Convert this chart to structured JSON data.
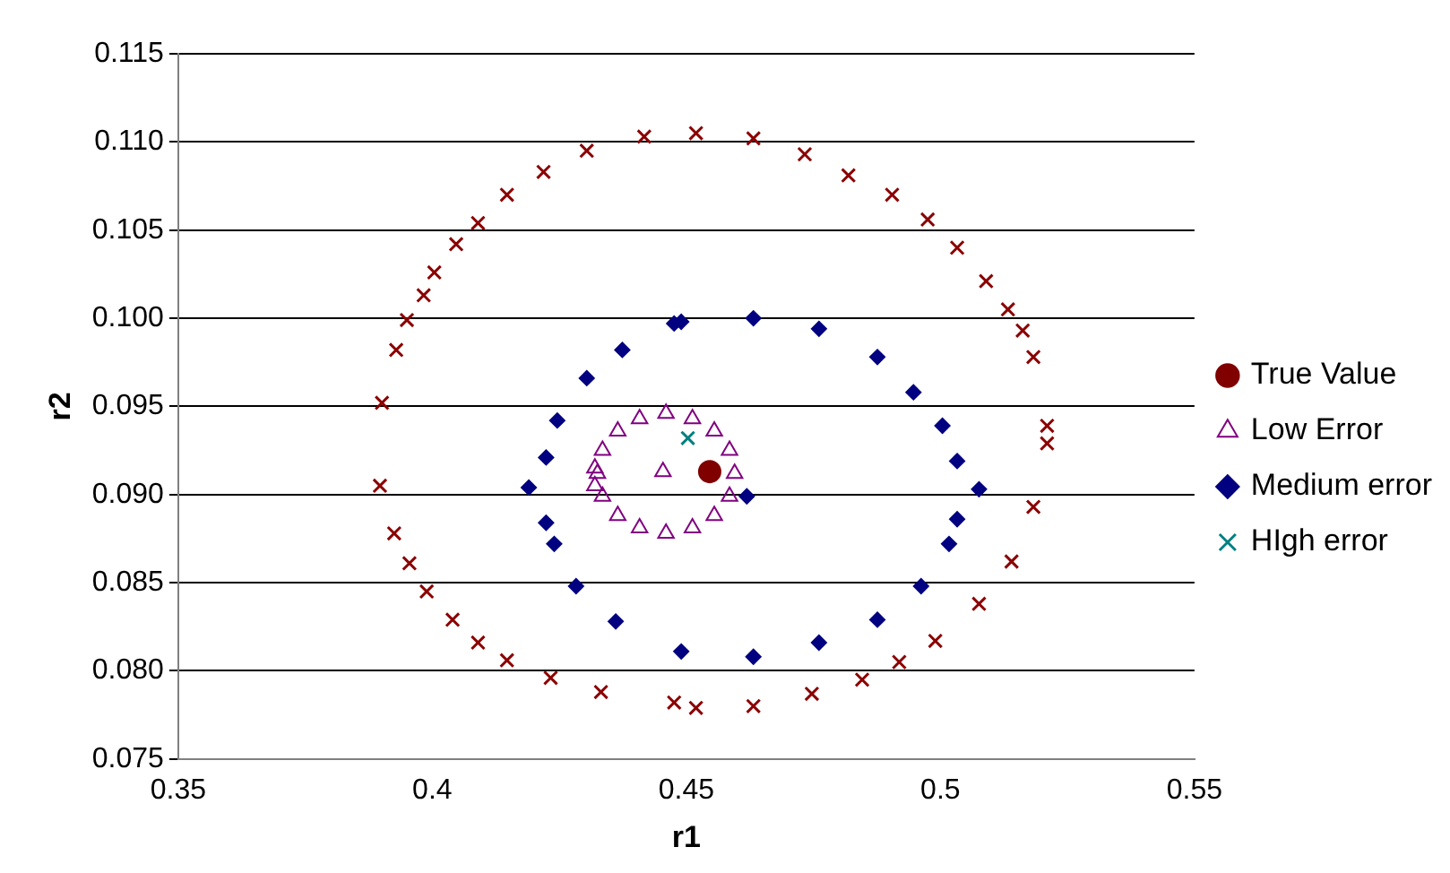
{
  "chart_data": {
    "type": "scatter",
    "xlabel": "r1",
    "ylabel": "r2",
    "xlim": [
      0.35,
      0.55
    ],
    "xticks": [
      0.35,
      0.4,
      0.45,
      0.5,
      0.55
    ],
    "ylim": [
      0.075,
      0.115
    ],
    "yticks": [
      {
        "value": 0.075,
        "label": "0.075"
      },
      {
        "value": 0.08,
        "label": "0.080"
      },
      {
        "value": 0.085,
        "label": "0.085"
      },
      {
        "value": 0.09,
        "label": "0.090"
      },
      {
        "value": 0.095,
        "label": "0.095"
      },
      {
        "value": 0.1,
        "label": "0.100"
      },
      {
        "value": 0.105,
        "label": "0.105"
      },
      {
        "value": 0.11,
        "label": "0.110"
      },
      {
        "value": 0.115,
        "label": "0.115"
      }
    ],
    "grid": "y",
    "legend": "right",
    "series": [
      {
        "name": "True Value",
        "color": "#800000",
        "marker": "circle",
        "x": [
          0.4546
        ],
        "values": [
          0.0913
        ]
      },
      {
        "name": "Low Error",
        "color": "#800080",
        "marker": "triangle",
        "x": [
          0.4454,
          0.4595,
          0.4585,
          0.4555,
          0.4512,
          0.446,
          0.4408,
          0.4365,
          0.4335,
          0.4325,
          0.4335,
          0.4365,
          0.4408,
          0.446,
          0.4512,
          0.4555,
          0.4585,
          0.432,
          0.432
        ],
        "values": [
          0.0913,
          0.0912,
          0.0925,
          0.0936,
          0.0943,
          0.0946,
          0.0943,
          0.0936,
          0.0925,
          0.0912,
          0.0899,
          0.0888,
          0.0881,
          0.0878,
          0.0881,
          0.0888,
          0.0899,
          0.0915,
          0.0905
        ]
      },
      {
        "name": "Medium error",
        "color": "#000080",
        "marker": "diamond",
        "x": [
          0.419,
          0.4224,
          0.4246,
          0.4304,
          0.4374,
          0.4476,
          0.449,
          0.4632,
          0.4761,
          0.4876,
          0.4947,
          0.5004,
          0.5033,
          0.5076,
          0.5033,
          0.5017,
          0.4962,
          0.4876,
          0.4761,
          0.4632,
          0.449,
          0.4361,
          0.4283,
          0.424,
          0.4224,
          0.4619
        ],
        "values": [
          0.0904,
          0.0921,
          0.0942,
          0.0966,
          0.0982,
          0.0997,
          0.0998,
          0.1,
          0.0994,
          0.0978,
          0.0958,
          0.0939,
          0.0919,
          0.0903,
          0.0886,
          0.0872,
          0.0848,
          0.0829,
          0.0816,
          0.0808,
          0.0811,
          0.0828,
          0.0848,
          0.0872,
          0.0884,
          0.0899
        ]
      },
      {
        "name": "HIgh error",
        "color": "#008080",
        "marker": "cross",
        "x": [
          0.4503
        ],
        "values": [
          0.0932
        ]
      },
      {
        "color": "#8b0000",
        "marker": "cross",
        "x": [
          0.3901,
          0.3929,
          0.395,
          0.3983,
          0.4004,
          0.4047,
          0.409,
          0.4147,
          0.4219,
          0.4304,
          0.4417,
          0.4519,
          0.4632,
          0.4733,
          0.4819,
          0.4905,
          0.4975,
          0.5033,
          0.509,
          0.5133,
          0.5162,
          0.5183,
          0.521,
          0.521,
          0.5183,
          0.514,
          0.5076,
          0.499,
          0.4919,
          0.4846,
          0.4747,
          0.4632,
          0.4519,
          0.4476,
          0.4332,
          0.4233,
          0.4147,
          0.409,
          0.404,
          0.3989,
          0.3955,
          0.3925,
          0.3897
        ],
        "values": [
          0.0952,
          0.0982,
          0.0999,
          0.1013,
          0.1026,
          0.1042,
          0.1054,
          0.107,
          0.1083,
          0.1095,
          0.1103,
          0.1105,
          0.1102,
          0.1093,
          0.1081,
          0.107,
          0.1056,
          0.104,
          0.1021,
          0.1005,
          0.0993,
          0.0978,
          0.0939,
          0.0929,
          0.0893,
          0.0862,
          0.0838,
          0.0817,
          0.0805,
          0.0795,
          0.0787,
          0.078,
          0.0779,
          0.0782,
          0.0788,
          0.0796,
          0.0806,
          0.0816,
          0.0829,
          0.0845,
          0.0861,
          0.0878,
          0.0905
        ]
      }
    ]
  }
}
